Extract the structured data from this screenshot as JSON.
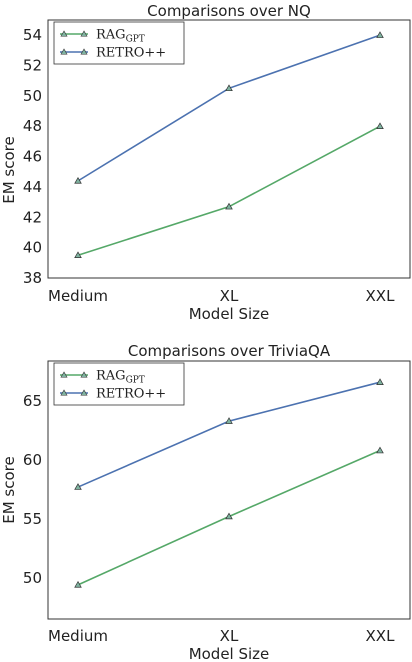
{
  "chart_data": [
    {
      "type": "line",
      "title": "Comparisons over NQ",
      "xlabel": "Model Size",
      "ylabel": "EM score",
      "categories": [
        "Medium",
        "XL",
        "XXL"
      ],
      "ylim": [
        38,
        55
      ],
      "yticks": [
        38,
        40,
        42,
        44,
        46,
        48,
        50,
        52,
        54
      ],
      "legend_position": "top-left",
      "grid": false,
      "series": [
        {
          "name": "RAG",
          "name_sub": "GPT",
          "color": "#55a868",
          "marker": "triangle",
          "values": [
            39.5,
            42.7,
            48.0
          ]
        },
        {
          "name": "RETRO++",
          "color": "#4c72b0",
          "marker": "triangle",
          "values": [
            44.4,
            50.5,
            54.0
          ]
        }
      ]
    },
    {
      "type": "line",
      "title": "Comparisons over TriviaQA",
      "xlabel": "Model Size",
      "ylabel": "EM score",
      "categories": [
        "Medium",
        "XL",
        "XXL"
      ],
      "ylim": [
        46.5,
        68.4
      ],
      "yticks": [
        50,
        55,
        60,
        65
      ],
      "legend_position": "top-left",
      "grid": false,
      "series": [
        {
          "name": "RAG",
          "name_sub": "GPT",
          "color": "#55a868",
          "marker": "triangle",
          "values": [
            49.4,
            55.2,
            60.8
          ]
        },
        {
          "name": "RETRO++",
          "color": "#4c72b0",
          "marker": "triangle",
          "values": [
            57.7,
            63.3,
            66.6
          ]
        }
      ]
    }
  ]
}
